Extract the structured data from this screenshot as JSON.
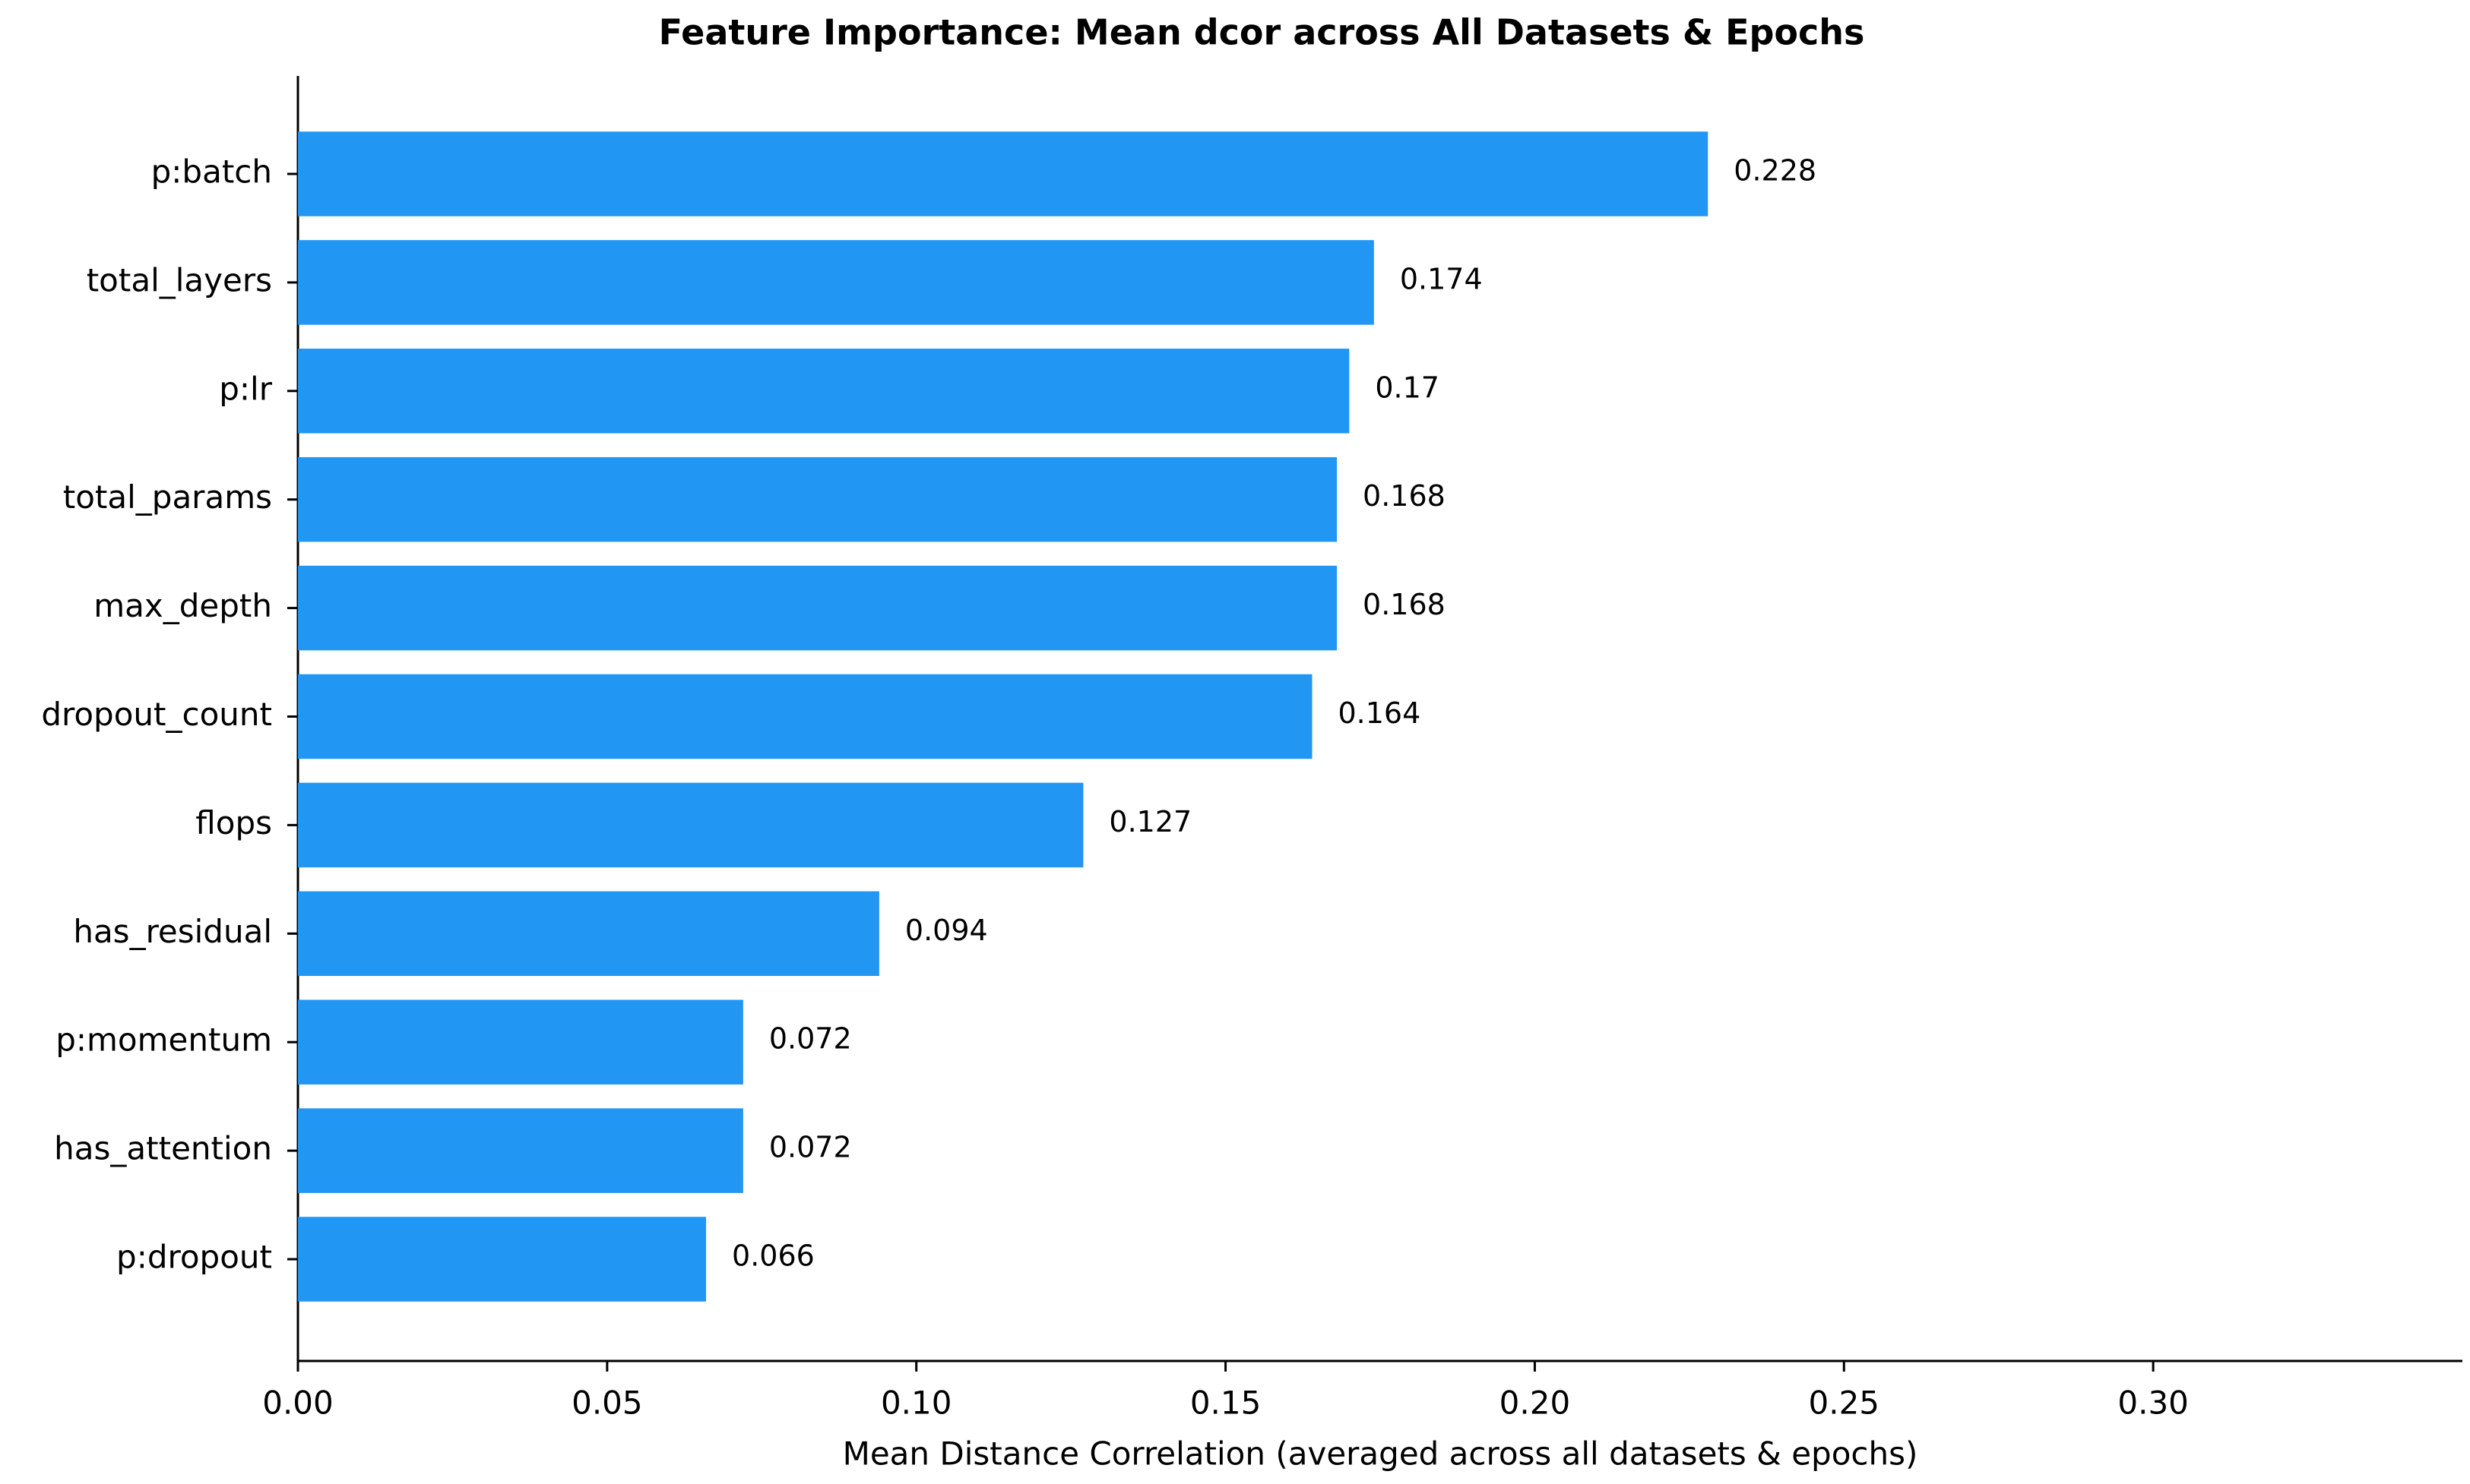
{
  "chart_data": {
    "type": "barh",
    "title": "Feature Importance: Mean dcor across All Datasets & Epochs",
    "x_label": "Mean Distance Correlation (averaged across all datasets & epochs)",
    "categories": [
      "p:batch",
      "total_layers",
      "p:lr",
      "total_params",
      "max_depth",
      "dropout_count",
      "flops",
      "has_residual",
      "p:momentum",
      "has_attention",
      "p:dropout"
    ],
    "values": [
      0.228,
      0.174,
      0.17,
      0.168,
      0.168,
      0.164,
      0.127,
      0.094,
      0.072,
      0.072,
      0.066
    ],
    "color": "#2196f3",
    "xlim": [
      0,
      0.35
    ],
    "xticks": [
      {
        "value": 0,
        "label": "0.00"
      },
      0.05,
      {
        "value": 0.1,
        "label": "0.10"
      },
      0.15,
      {
        "value": 0.2,
        "label": "0.20"
      },
      0.25,
      {
        "value": 0.3,
        "label": "0.30"
      }
    ],
    "grid": false
  }
}
